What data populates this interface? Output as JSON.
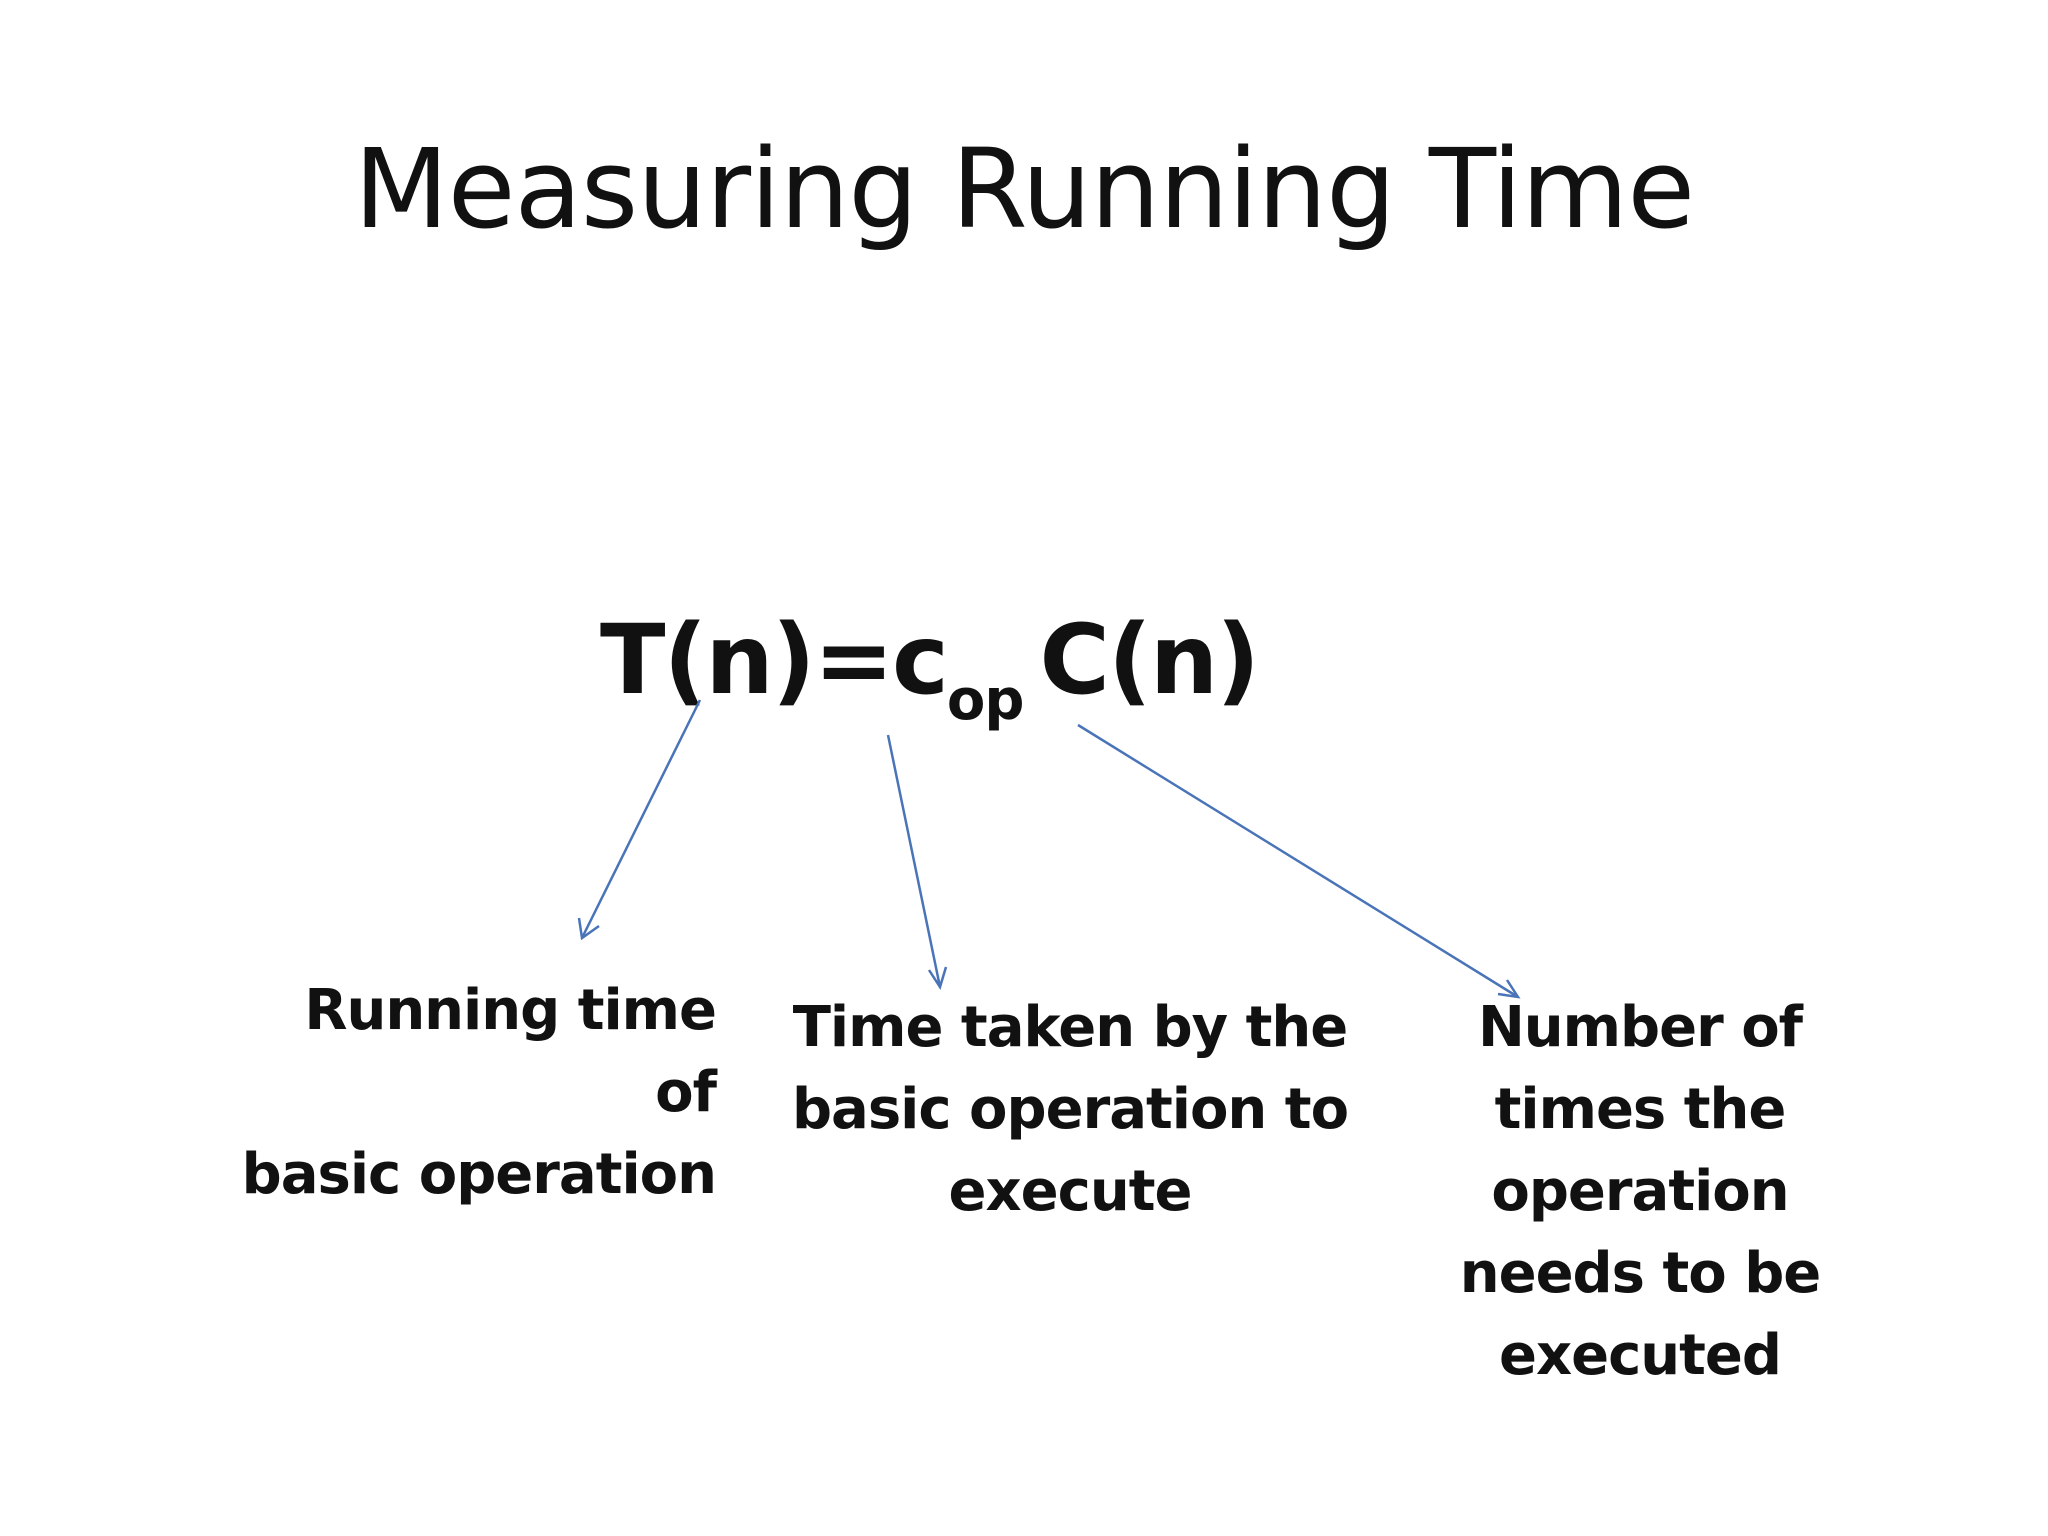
{
  "slide": {
    "title": "Measuring Running Time",
    "formula": {
      "lhs": "T(n)=c",
      "subscript": "op",
      "rhs": "C(n)"
    },
    "labels": [
      "Running time of\nbasic operation",
      "Time taken by the\nbasic operation to\nexecute",
      "Number of\ntimes the\noperation\nneeds to be\nexecuted"
    ],
    "arrow_color": "#4a74b8"
  }
}
